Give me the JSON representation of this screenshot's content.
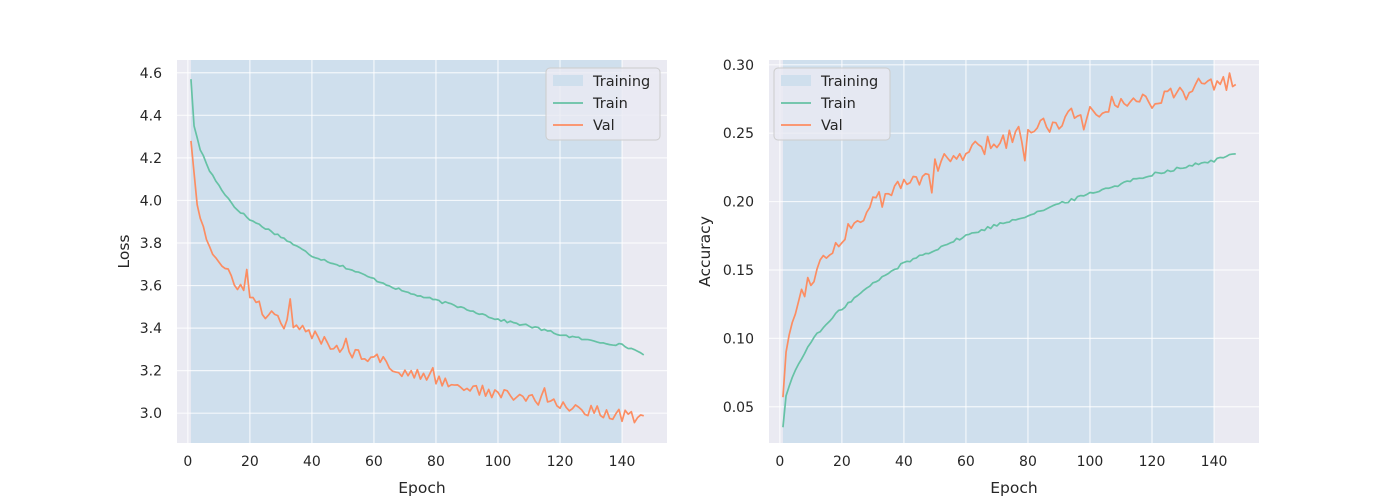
{
  "chart_data": [
    {
      "type": "line",
      "xlabel": "Epoch",
      "ylabel": "Loss",
      "xlim": [
        -3.5,
        154.5
      ],
      "ylim": [
        2.86,
        4.66
      ],
      "xticks": [
        0,
        20,
        40,
        60,
        80,
        100,
        120,
        140
      ],
      "xtick_labels": [
        "0",
        "20",
        "40",
        "60",
        "80",
        "100",
        "120",
        "140"
      ],
      "yticks": [
        3.0,
        3.2,
        3.4,
        3.6,
        3.8,
        4.0,
        4.2,
        4.4,
        4.6
      ],
      "ytick_labels": [
        "3.0",
        "3.2",
        "3.4",
        "3.6",
        "3.8",
        "4.0",
        "4.2",
        "4.4",
        "4.6"
      ],
      "grid": true,
      "legend_position": "top-right",
      "span": {
        "label": "Training",
        "x_start": 1,
        "x_end": 140,
        "color": "#cfdfed"
      },
      "series": [
        {
          "name": "Train",
          "color": "#66c2a5",
          "x_start": 1,
          "x_end": 147,
          "anchors": [
            [
              1,
              4.57
            ],
            [
              2,
              4.35
            ],
            [
              4,
              4.24
            ],
            [
              7,
              4.14
            ],
            [
              10,
              4.07
            ],
            [
              15,
              3.97
            ],
            [
              20,
              3.91
            ],
            [
              30,
              3.83
            ],
            [
              40,
              3.74
            ],
            [
              50,
              3.69
            ],
            [
              60,
              3.63
            ],
            [
              70,
              3.57
            ],
            [
              80,
              3.53
            ],
            [
              90,
              3.49
            ],
            [
              100,
              3.44
            ],
            [
              110,
              3.41
            ],
            [
              120,
              3.37
            ],
            [
              130,
              3.34
            ],
            [
              140,
              3.32
            ],
            [
              147,
              3.28
            ]
          ],
          "noise": 0.006
        },
        {
          "name": "Val",
          "color": "#fc8d62",
          "x_start": 1,
          "x_end": 147,
          "anchors": [
            [
              1,
              4.28
            ],
            [
              2,
              4.13
            ],
            [
              3,
              3.98
            ],
            [
              5,
              3.88
            ],
            [
              7,
              3.78
            ],
            [
              10,
              3.7
            ],
            [
              15,
              3.62
            ],
            [
              20,
              3.55
            ],
            [
              25,
              3.47
            ],
            [
              30,
              3.43
            ],
            [
              40,
              3.37
            ],
            [
              50,
              3.3
            ],
            [
              60,
              3.26
            ],
            [
              70,
              3.19
            ],
            [
              80,
              3.16
            ],
            [
              90,
              3.12
            ],
            [
              100,
              3.09
            ],
            [
              110,
              3.07
            ],
            [
              120,
              3.04
            ],
            [
              130,
              3.01
            ],
            [
              140,
              2.99
            ],
            [
              147,
              2.97
            ]
          ],
          "noise": 0.028,
          "spikes": [
            [
              19,
              0.1
            ],
            [
              33,
              0.1
            ],
            [
              51,
              0.07
            ],
            [
              61,
              0.05
            ],
            [
              79,
              0.05
            ],
            [
              115,
              0.05
            ],
            [
              141,
              0.05
            ]
          ]
        }
      ]
    },
    {
      "type": "line",
      "xlabel": "Epoch",
      "ylabel": "Accuracy",
      "xlim": [
        -3.5,
        154.5
      ],
      "ylim": [
        0.0235,
        0.3035
      ],
      "xticks": [
        0,
        20,
        40,
        60,
        80,
        100,
        120,
        140
      ],
      "xtick_labels": [
        "0",
        "20",
        "40",
        "60",
        "80",
        "100",
        "120",
        "140"
      ],
      "yticks": [
        0.05,
        0.1,
        0.15,
        0.2,
        0.25,
        0.3
      ],
      "ytick_labels": [
        "0.05",
        "0.10",
        "0.15",
        "0.20",
        "0.25",
        "0.30"
      ],
      "grid": true,
      "legend_position": "top-left",
      "span": {
        "label": "Training",
        "x_start": 1,
        "x_end": 140,
        "color": "#cfdfed"
      },
      "series": [
        {
          "name": "Train",
          "color": "#66c2a5",
          "x_start": 1,
          "x_end": 147,
          "anchors": [
            [
              1,
              0.035
            ],
            [
              2,
              0.058
            ],
            [
              4,
              0.072
            ],
            [
              7,
              0.085
            ],
            [
              10,
              0.098
            ],
            [
              15,
              0.11
            ],
            [
              20,
              0.122
            ],
            [
              30,
              0.14
            ],
            [
              40,
              0.155
            ],
            [
              50,
              0.165
            ],
            [
              60,
              0.175
            ],
            [
              70,
              0.183
            ],
            [
              80,
              0.19
            ],
            [
              90,
              0.198
            ],
            [
              100,
              0.206
            ],
            [
              110,
              0.213
            ],
            [
              120,
              0.22
            ],
            [
              130,
              0.225
            ],
            [
              140,
              0.23
            ],
            [
              147,
              0.235
            ]
          ],
          "noise": 0.0012
        },
        {
          "name": "Val",
          "color": "#fc8d62",
          "x_start": 1,
          "x_end": 147,
          "anchors": [
            [
              1,
              0.057
            ],
            [
              2,
              0.09
            ],
            [
              4,
              0.115
            ],
            [
              7,
              0.133
            ],
            [
              10,
              0.145
            ],
            [
              15,
              0.16
            ],
            [
              20,
              0.175
            ],
            [
              30,
              0.197
            ],
            [
              40,
              0.213
            ],
            [
              50,
              0.225
            ],
            [
              60,
              0.235
            ],
            [
              70,
              0.243
            ],
            [
              80,
              0.252
            ],
            [
              90,
              0.26
            ],
            [
              100,
              0.267
            ],
            [
              110,
              0.272
            ],
            [
              120,
              0.275
            ],
            [
              130,
              0.281
            ],
            [
              140,
              0.286
            ],
            [
              147,
              0.289
            ]
          ],
          "noise": 0.007,
          "spikes": [
            [
              49,
              -0.012
            ],
            [
              79,
              -0.015
            ],
            [
              98,
              -0.01
            ]
          ]
        }
      ]
    }
  ]
}
